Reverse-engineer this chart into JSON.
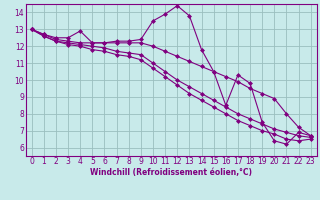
{
  "xlabel": "Windchill (Refroidissement éolien,°C)",
  "hours": [
    0,
    1,
    2,
    3,
    4,
    5,
    6,
    7,
    8,
    9,
    10,
    11,
    12,
    13,
    14,
    15,
    16,
    17,
    18,
    19,
    20,
    21,
    22,
    23
  ],
  "line1": [
    13.0,
    12.7,
    12.5,
    12.5,
    12.9,
    12.2,
    12.2,
    12.3,
    12.3,
    12.4,
    13.5,
    13.9,
    14.4,
    13.8,
    11.8,
    10.5,
    8.5,
    10.3,
    9.8,
    7.5,
    6.4,
    6.2,
    6.9,
    6.7
  ],
  "line2": [
    13.0,
    12.7,
    12.4,
    12.3,
    12.2,
    12.2,
    12.2,
    12.2,
    12.2,
    12.2,
    12.0,
    11.7,
    11.4,
    11.1,
    10.8,
    10.5,
    10.2,
    9.9,
    9.5,
    9.2,
    8.9,
    8.0,
    7.2,
    6.7
  ],
  "line3": [
    13.0,
    12.6,
    12.3,
    12.2,
    12.1,
    12.0,
    11.9,
    11.7,
    11.6,
    11.5,
    11.0,
    10.5,
    10.0,
    9.6,
    9.2,
    8.8,
    8.4,
    8.0,
    7.7,
    7.4,
    7.1,
    6.9,
    6.7,
    6.6
  ],
  "line4": [
    13.0,
    12.6,
    12.3,
    12.1,
    12.0,
    11.8,
    11.7,
    11.5,
    11.4,
    11.2,
    10.7,
    10.2,
    9.7,
    9.2,
    8.8,
    8.4,
    8.0,
    7.6,
    7.3,
    7.0,
    6.8,
    6.5,
    6.4,
    6.5
  ],
  "line_color": "#800080",
  "bg_color": "#c8eaea",
  "grid_color": "#9abebe",
  "ylim": [
    5.5,
    14.5
  ],
  "yticks": [
    6,
    7,
    8,
    9,
    10,
    11,
    12,
    13,
    14
  ],
  "marker": "D",
  "markersize": 2.0,
  "lw": 0.8,
  "xlabel_fontsize": 5.5,
  "tick_fontsize": 5.5
}
